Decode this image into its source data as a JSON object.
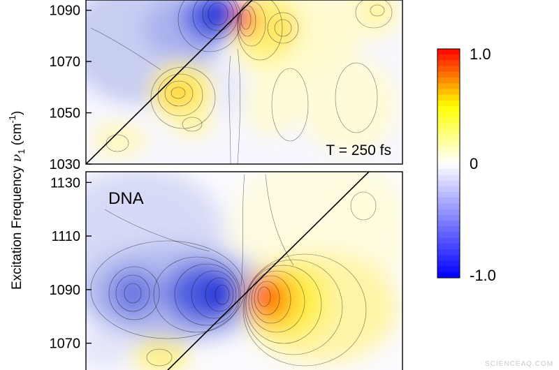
{
  "chart_data": [
    {
      "type": "heatmap",
      "ylabel": "Excitation Frequency ν₁ (cm⁻¹)",
      "ylabel_parts": {
        "main": "Excitation Frequency",
        "nu": "ν",
        "sub": "1",
        "unit_open": " (cm",
        "sup": "-1",
        "unit_close": ")"
      },
      "yticks": [
        "1090",
        "1070",
        "1050",
        "1030"
      ],
      "ylim": [
        1030,
        1094
      ],
      "annotation": "T = 250 fs",
      "colormap": [
        "#0000ff",
        "#ffffff",
        "#ffff00",
        "#ff0000"
      ],
      "diagonal": true
    },
    {
      "type": "heatmap",
      "panel_label": "DNA",
      "yticks": [
        "1130",
        "1110",
        "1090",
        "1070"
      ],
      "ylim": [
        1060,
        1134
      ],
      "diagonal": true
    }
  ],
  "colorbar": {
    "max_label": "1.0",
    "mid_label": "0",
    "min_label": "-1.0",
    "range": [
      -1.0,
      1.0
    ]
  },
  "watermark": "SCIENCEAQ.COM"
}
